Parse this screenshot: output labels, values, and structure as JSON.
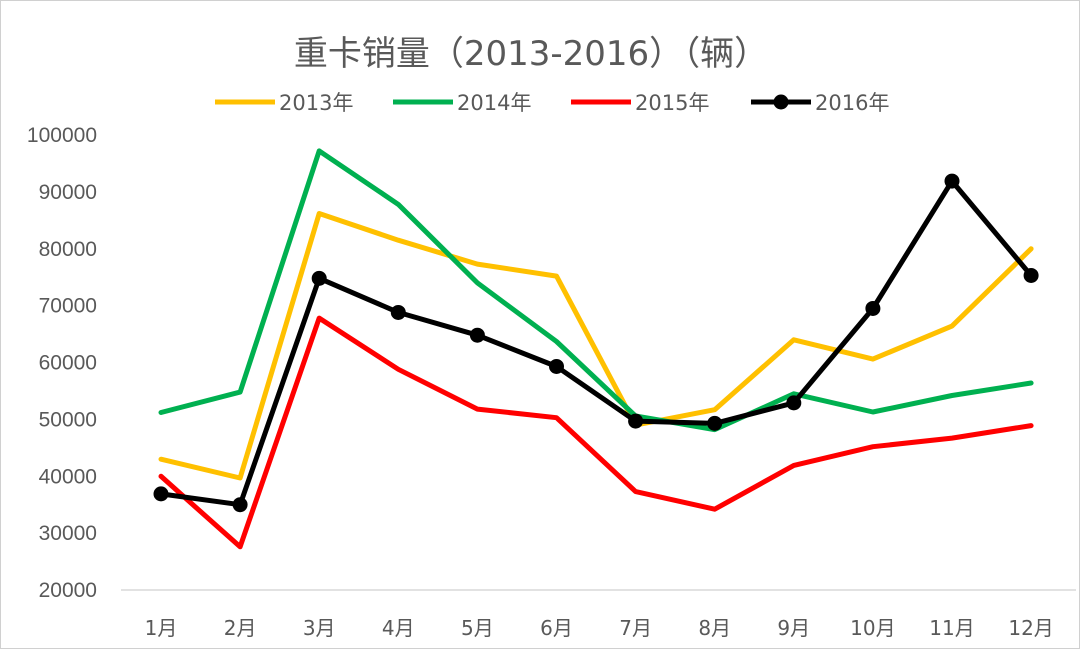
{
  "chart_data": {
    "type": "line",
    "title": "重卡销量（2013-2016）（辆）",
    "xlabel": "",
    "ylabel": "",
    "categories": [
      "1月",
      "2月",
      "3月",
      "4月",
      "5月",
      "6月",
      "7月",
      "8月",
      "9月",
      "10月",
      "11月",
      "12月"
    ],
    "ylim": [
      20000,
      100000
    ],
    "yticks": [
      20000,
      30000,
      40000,
      50000,
      60000,
      70000,
      80000,
      90000,
      100000
    ],
    "grid": false,
    "legend_position": "top",
    "series": [
      {
        "name": "2013年",
        "color": "#FFC000",
        "markers": false,
        "values": [
          43000,
          39700,
          86200,
          81500,
          77300,
          75200,
          49000,
          51700,
          64000,
          60600,
          66400,
          80000
        ]
      },
      {
        "name": "2014年",
        "color": "#00B050",
        "markers": false,
        "values": [
          51200,
          54800,
          97200,
          87800,
          74000,
          63700,
          50600,
          48200,
          54500,
          51300,
          54200,
          56400
        ]
      },
      {
        "name": "2015年",
        "color": "#FF0000",
        "markers": false,
        "values": [
          40000,
          27600,
          67800,
          58800,
          51800,
          50300,
          37300,
          34200,
          41900,
          45200,
          46700,
          48900
        ]
      },
      {
        "name": "2016年",
        "color": "#000000",
        "markers": true,
        "values": [
          36900,
          35000,
          74800,
          68800,
          64800,
          59300,
          49700,
          49300,
          52900,
          69500,
          91900,
          75300
        ]
      }
    ]
  }
}
